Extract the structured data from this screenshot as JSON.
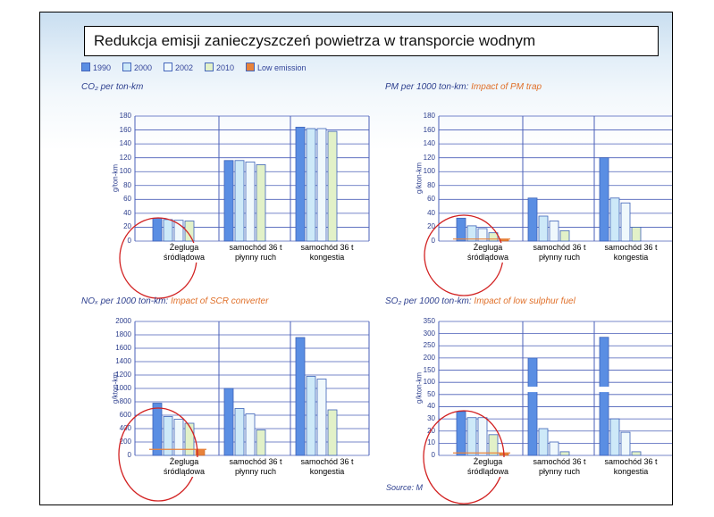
{
  "slide_title": "Redukcja emisji zanieczyszczeń powietrza w transporcie wodnym",
  "legend": [
    {
      "label": "1990",
      "color": "#5a8ee3"
    },
    {
      "label": "2000",
      "color": "#cde9f8"
    },
    {
      "label": "2002",
      "color": "#eff8fc"
    },
    {
      "label": "2010",
      "color": "#e2f1c8"
    },
    {
      "label": "Low emission",
      "color": "#e8823a"
    }
  ],
  "source": "Source: M",
  "chart_data": [
    {
      "type": "bar",
      "title": "CO₂ per ton-km",
      "title_highlight": "",
      "ylabel": "g/ton-km",
      "ylim": [
        0,
        180
      ],
      "yticks": [
        "0",
        "20",
        "40",
        "60",
        "80",
        "100",
        "120",
        "140",
        "160",
        "180"
      ],
      "categories": [
        "Żegluga śródlądowa",
        "samochód 36 t płynny ruch",
        "samochód 36 t kongestia"
      ],
      "series": [
        {
          "name": "1990",
          "values": [
            33,
            116,
            164
          ]
        },
        {
          "name": "2000",
          "values": [
            31,
            116,
            162
          ]
        },
        {
          "name": "2002",
          "values": [
            30,
            114,
            162
          ]
        },
        {
          "name": "2010",
          "values": [
            29,
            110,
            158
          ]
        }
      ]
    },
    {
      "type": "bar",
      "title": "PM per 1000 ton-km:",
      "title_highlight": "Impact of PM trap",
      "ylabel": "g/kton-km",
      "ylim": [
        0,
        180
      ],
      "yticks": [
        "0",
        "20",
        "40",
        "60",
        "80",
        "100",
        "120",
        "140",
        "160",
        "180"
      ],
      "categories": [
        "Żegluga śródlądowa",
        "samochód 36 t płynny ruch",
        "samochód 36 t kongestia"
      ],
      "series": [
        {
          "name": "1990",
          "values": [
            33,
            62,
            120
          ]
        },
        {
          "name": "2000",
          "values": [
            22,
            36,
            62
          ]
        },
        {
          "name": "2002",
          "values": [
            18,
            29,
            55
          ]
        },
        {
          "name": "2010",
          "values": [
            12,
            15,
            20
          ]
        },
        {
          "name": "Low emission",
          "values": [
            3,
            null,
            null
          ]
        }
      ]
    },
    {
      "type": "bar",
      "title": "NOₓ per 1000 ton-km:",
      "title_highlight": "Impact of SCR converter",
      "ylabel": "g/kton-km",
      "ylim": [
        0,
        2000
      ],
      "yticks": [
        "0",
        "200",
        "400",
        "600",
        "800",
        "1000",
        "1200",
        "1400",
        "1600",
        "1800",
        "2000"
      ],
      "categories": [
        "Żegluga śródlądowa",
        "samochód 36 t płynny ruch",
        "samochód 36 t kongestia"
      ],
      "series": [
        {
          "name": "1990",
          "values": [
            780,
            1000,
            1760
          ]
        },
        {
          "name": "2000",
          "values": [
            580,
            700,
            1180
          ]
        },
        {
          "name": "2002",
          "values": [
            540,
            620,
            1140
          ]
        },
        {
          "name": "2010",
          "values": [
            480,
            380,
            680
          ]
        },
        {
          "name": "Low emission",
          "values": [
            90,
            null,
            null
          ]
        }
      ]
    },
    {
      "type": "bar",
      "title": "SO₂ per 1000 ton-km:",
      "title_highlight": "Impact of low sulphur fuel",
      "ylabel": "g/kton-km",
      "ylim": [
        0,
        350
      ],
      "yticks": [
        "0",
        "10",
        "20",
        "30",
        "40",
        "50",
        "100",
        "150",
        "200",
        "250",
        "300",
        "350"
      ],
      "categories": [
        "Żegluga śródlądowa",
        "samochód 36 t płynny ruch",
        "samochód 36 t kongestia"
      ],
      "series": [
        {
          "name": "1990",
          "values": [
            36,
            60,
            60
          ]
        },
        {
          "name": "2000",
          "values": [
            31,
            22,
            30
          ]
        },
        {
          "name": "2002",
          "values": [
            31,
            11,
            19
          ]
        },
        {
          "name": "2010",
          "values": [
            17,
            3,
            3
          ]
        },
        {
          "name": "Low emission",
          "values": [
            2,
            null,
            null
          ]
        }
      ],
      "broken_axis_values_above_50": {
        "1990": [
          null,
          200,
          285
        ]
      }
    }
  ]
}
